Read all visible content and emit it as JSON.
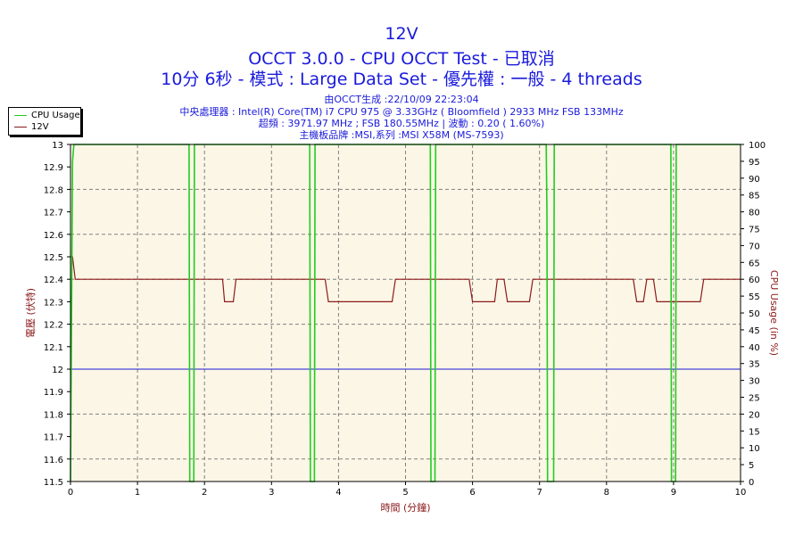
{
  "header": {
    "title": "12V",
    "subtitle": "OCCT 3.0.0 - CPU OCCT Test - 已取消",
    "subtitle2": "10分 6秒 - 模式 : Large Data Set - 優先權 : 一般 - 4 threads",
    "info1": "由OCCT生成 :22/10/09 22:23:04",
    "info2": "中央處理器 : Intel(R) Core(TM) i7 CPU 975 @ 3.33GHz ( Bloomfield ) 2933 MHz FSB 133MHz",
    "info3": "超頻 : 3971.97 MHz ; FSB 180.55MHz | 波動 : 0.20 ( 1.60%)",
    "info4": "主機板品牌 :MSI,系列 :MSI X58M (MS-7593)"
  },
  "legend": {
    "items": [
      "CPU Usage",
      "12V"
    ]
  },
  "colors": {
    "cpu": "#22cc22",
    "voltage": "#8b1a1a",
    "reference": "#1a1adb",
    "plot_bg": "#fcf6e6",
    "text_blue": "#1a1adb"
  },
  "chart_data": {
    "type": "line",
    "xlabel": "時間 (分鐘)",
    "ylabel": "電壓 (伏特)",
    "y2label": "CPU Usage (in %)",
    "xlim": [
      0,
      10
    ],
    "ylim": [
      11.5,
      13
    ],
    "y2lim": [
      0,
      100
    ],
    "x_ticks": [
      0,
      1,
      2,
      3,
      4,
      5,
      6,
      7,
      8,
      9,
      10
    ],
    "y_ticks": [
      "11.5",
      "11.6",
      "11.7",
      "11.8",
      "11.9",
      "12",
      "12.1",
      "12.2",
      "12.3",
      "12.4",
      "12.5",
      "12.6",
      "12.7",
      "12.8",
      "12.9",
      "13"
    ],
    "y2_ticks": [
      0,
      5,
      10,
      15,
      20,
      25,
      30,
      35,
      40,
      45,
      50,
      55,
      60,
      65,
      70,
      75,
      80,
      85,
      90,
      95,
      100
    ],
    "grid": true,
    "legend_position": "top-left",
    "series": [
      {
        "name": "12V",
        "axis": "left",
        "x": [
          0,
          0.03,
          0.07,
          0.1,
          2.27,
          2.3,
          2.43,
          2.47,
          3.8,
          3.85,
          4.8,
          4.85,
          5.95,
          6,
          6.33,
          6.37,
          6.47,
          6.52,
          6.57,
          6.62,
          6.85,
          6.9,
          8.4,
          8.45,
          8.55,
          8.6,
          8.7,
          8.75,
          8.8,
          8.85,
          9.4,
          9.45,
          10
        ],
        "y": [
          12.5,
          12.5,
          12.4,
          12.4,
          12.4,
          12.3,
          12.3,
          12.4,
          12.4,
          12.3,
          12.3,
          12.4,
          12.4,
          12.3,
          12.3,
          12.4,
          12.4,
          12.3,
          12.3,
          12.3,
          12.3,
          12.4,
          12.4,
          12.3,
          12.3,
          12.4,
          12.4,
          12.3,
          12.3,
          12.3,
          12.3,
          12.4,
          12.4
        ]
      },
      {
        "name": "CPU Usage",
        "axis": "right",
        "x": [
          0,
          0.03,
          0.05,
          1.77,
          1.78,
          1.84,
          1.85,
          3.57,
          3.58,
          3.64,
          3.65,
          5.37,
          5.38,
          5.44,
          5.45,
          7.1,
          7.11,
          7.12,
          7.13,
          7.21,
          7.22,
          8.96,
          8.97,
          9.03,
          9.04,
          10
        ],
        "y": [
          0,
          95,
          100,
          100,
          0,
          0,
          100,
          100,
          0,
          0,
          100,
          100,
          0,
          0,
          100,
          100,
          80,
          0,
          0,
          0,
          100,
          100,
          0,
          0,
          100,
          100
        ]
      },
      {
        "name": "",
        "axis": "left",
        "x": [
          0,
          10
        ],
        "y": [
          12,
          12
        ]
      }
    ]
  }
}
